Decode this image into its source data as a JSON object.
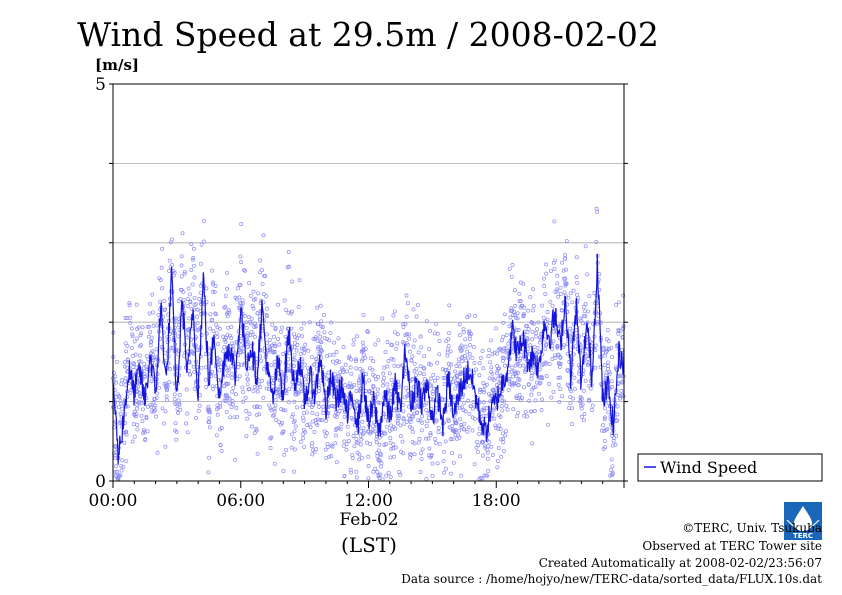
{
  "chart_data": {
    "type": "line",
    "title": "Wind Speed at 29.5m / 2008-02-02",
    "ylabel": "[m/s]",
    "ylim": [
      0,
      5
    ],
    "yticks": [
      0,
      1,
      2,
      3,
      4,
      5
    ],
    "y_tick_labels": [
      "0",
      "5"
    ],
    "xlim_hours": [
      0,
      24
    ],
    "x_ticks_hours": [
      0,
      6,
      12,
      18
    ],
    "x_tick_labels": [
      "00:00",
      "06:00",
      "12:00",
      "18:00"
    ],
    "x_date_label": "Feb-02",
    "x_axis_label": "(LST)",
    "grid": true,
    "legend": "bottom-right",
    "series": [
      {
        "name": "Wind Speed",
        "color": "#1414dc",
        "x": [
          0.0,
          0.25,
          0.5,
          0.75,
          1.0,
          1.25,
          1.5,
          1.75,
          2.0,
          2.25,
          2.5,
          2.75,
          3.0,
          3.25,
          3.5,
          3.75,
          4.0,
          4.25,
          4.5,
          4.75,
          5.0,
          5.25,
          5.5,
          5.75,
          6.0,
          6.25,
          6.5,
          6.75,
          7.0,
          7.25,
          7.5,
          7.75,
          8.0,
          8.25,
          8.5,
          8.75,
          9.0,
          9.25,
          9.5,
          9.75,
          10.0,
          10.25,
          10.5,
          10.75,
          11.0,
          11.25,
          11.5,
          11.75,
          12.0,
          12.25,
          12.5,
          12.75,
          13.0,
          13.25,
          13.5,
          13.75,
          14.0,
          14.25,
          14.5,
          14.75,
          15.0,
          15.25,
          15.5,
          15.75,
          16.0,
          16.25,
          16.5,
          16.75,
          17.0,
          17.25,
          17.5,
          17.75,
          18.0,
          18.25,
          18.5,
          18.75,
          19.0,
          19.25,
          19.5,
          19.75,
          20.0,
          20.25,
          20.5,
          20.75,
          21.0,
          21.25,
          21.5,
          21.75,
          22.0,
          22.25,
          22.5,
          22.75,
          23.0,
          23.25,
          23.5,
          23.75,
          24.0
        ],
        "values": [
          1.3,
          0.3,
          0.8,
          1.4,
          1.1,
          1.4,
          1.0,
          1.6,
          1.1,
          2.2,
          1.2,
          2.6,
          1.0,
          2.3,
          1.3,
          2.2,
          1.1,
          2.6,
          1.2,
          1.9,
          1.0,
          1.6,
          1.7,
          1.3,
          2.2,
          1.5,
          1.7,
          1.3,
          2.2,
          1.4,
          1.0,
          1.5,
          1.1,
          1.9,
          1.2,
          1.5,
          1.0,
          1.3,
          1.1,
          1.6,
          0.9,
          1.3,
          1.0,
          1.2,
          0.8,
          1.1,
          0.7,
          1.3,
          0.7,
          1.0,
          0.6,
          1.1,
          0.8,
          1.2,
          0.9,
          1.7,
          0.9,
          1.3,
          1.0,
          1.2,
          0.8,
          1.1,
          0.7,
          1.3,
          0.8,
          1.1,
          1.3,
          1.4,
          1.1,
          0.8,
          0.6,
          0.9,
          1.0,
          1.2,
          1.4,
          1.9,
          1.6,
          1.8,
          1.5,
          1.6,
          1.4,
          2.0,
          1.8,
          2.1,
          1.7,
          2.3,
          1.3,
          2.2,
          1.2,
          2.0,
          1.3,
          2.8,
          1.0,
          1.2,
          0.7,
          1.6,
          1.5
        ],
        "scatter_spread": 0.55
      }
    ]
  },
  "credits": {
    "copyright": "©TERC, Univ. Tsukuba",
    "observed": "Observed at TERC Tower site",
    "created": "Created Automatically at 2008-02-02/23:56:07",
    "source": "Data source : /home/hojyo/new/TERC-data/sorted_data/FLUX.10s.dat"
  },
  "logo": {
    "text": "TERC",
    "color": "#1a66b8",
    "icon": "water-drop-logo"
  }
}
